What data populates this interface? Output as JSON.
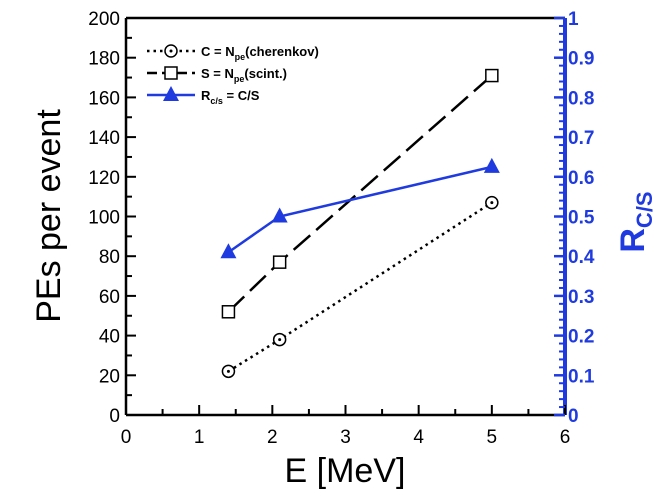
{
  "chart_data": {
    "type": "line",
    "xlabel": "E [MeV]",
    "ylabel": "PEs per event",
    "y2label": "R",
    "y2label_sub": "C/S",
    "xlim": [
      0,
      6
    ],
    "ylim": [
      0,
      200
    ],
    "y2lim": [
      0,
      1
    ],
    "x_ticks": [
      0,
      1,
      2,
      3,
      4,
      5,
      6
    ],
    "y_ticks": [
      0,
      20,
      40,
      60,
      80,
      100,
      120,
      140,
      160,
      180,
      200
    ],
    "y2_ticks": [
      0,
      0.1,
      0.2,
      0.3,
      0.4,
      0.5,
      0.6,
      0.7,
      0.8,
      0.9,
      1
    ],
    "y2_tick_labels": [
      "0",
      "0.1",
      "0.2",
      "0.3",
      "0.4",
      "0.5",
      "0.6",
      "0.7",
      "0.8",
      "0.9",
      "1"
    ],
    "legend_position": "top-left",
    "grid": false,
    "series": [
      {
        "name": "C = N_pe(cherenkov)",
        "legend_parts": [
          "C = N",
          "pe",
          "(cherenkov)"
        ],
        "axis": "left",
        "style": "dotted",
        "marker": "circle-dot",
        "color": "#000000",
        "x": [
          1.4,
          2.1,
          5.0
        ],
        "y": [
          22,
          38,
          107
        ]
      },
      {
        "name": "S = N_pe(scint.)",
        "legend_parts": [
          "S = N",
          "pe",
          "(scint.)"
        ],
        "axis": "left",
        "style": "dashed",
        "marker": "square",
        "color": "#000000",
        "x": [
          1.4,
          2.1,
          5.0
        ],
        "y": [
          52,
          77,
          171
        ]
      },
      {
        "name": "R_c/s = C/S",
        "legend_parts": [
          "R",
          "c/s",
          " = C/S"
        ],
        "axis": "right",
        "style": "solid",
        "marker": "triangle",
        "color": "#1f3be0",
        "x": [
          1.4,
          2.1,
          5.0
        ],
        "y": [
          0.41,
          0.5,
          0.625
        ]
      }
    ]
  }
}
